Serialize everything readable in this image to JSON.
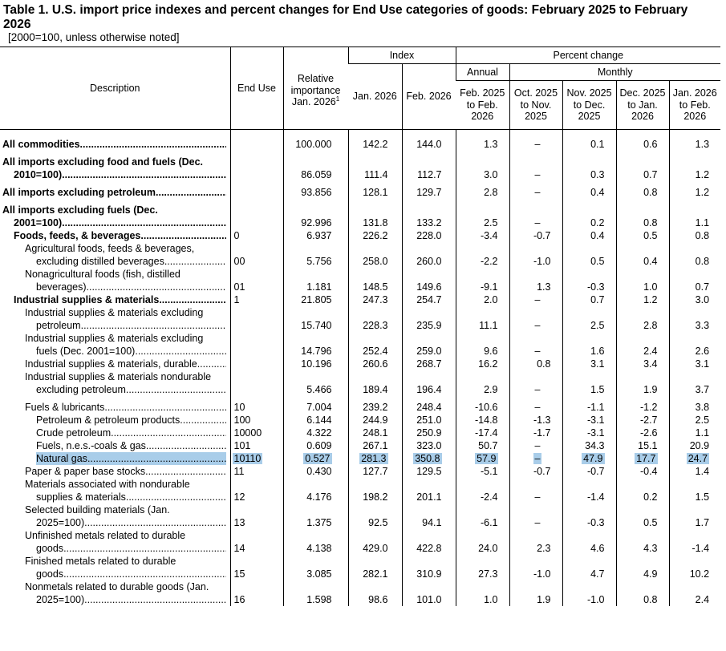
{
  "title": "Table 1. U.S. import price indexes and percent changes for End Use categories of goods: February 2025 to February 2026",
  "subtitle": "[2000=100, unless otherwise noted]",
  "header": {
    "description": "Description",
    "end_use": "End Use",
    "relative_importance_text": "Relative importance Jan. 2026",
    "relative_importance_footnote": "1",
    "index_group": "Index",
    "percent_change_group": "Percent change",
    "annual": "Annual",
    "monthly": "Monthly",
    "index_jan": "Jan. 2026",
    "index_feb": "Feb. 2026",
    "annual_period": "Feb. 2025 to Feb. 2026",
    "m_oct_nov": "Oct. 2025 to Nov. 2025",
    "m_nov_dec": "Nov. 2025 to Dec. 2025",
    "m_dec_jan": "Dec. 2025 to Jan. 2026",
    "m_jan_feb": "Jan. 2026 to Feb. 2026"
  },
  "rows": [
    {
      "l1": "All commodities",
      "l2": "",
      "end_use": "",
      "rel": "100.000",
      "jan": "142.2",
      "feb": "144.0",
      "annual": "1.3",
      "oct_nov": "–",
      "nov_dec": "0.1",
      "dec_jan": "0.6",
      "jan_feb": "1.3"
    },
    {
      "l1": "All imports excluding food and fuels (Dec.",
      "l2": "2010=100)",
      "end_use": "",
      "rel": "86.059",
      "jan": "111.4",
      "feb": "112.7",
      "annual": "3.0",
      "oct_nov": "–",
      "nov_dec": "0.3",
      "dec_jan": "0.7",
      "jan_feb": "1.2"
    },
    {
      "l1": "All imports excluding petroleum",
      "l2": "",
      "end_use": "",
      "rel": "93.856",
      "jan": "128.1",
      "feb": "129.7",
      "annual": "2.8",
      "oct_nov": "–",
      "nov_dec": "0.4",
      "dec_jan": "0.8",
      "jan_feb": "1.2"
    },
    {
      "l1": "All imports excluding fuels (Dec.",
      "l2": "2001=100)",
      "end_use": "",
      "rel": "92.996",
      "jan": "131.8",
      "feb": "133.2",
      "annual": "2.5",
      "oct_nov": "–",
      "nov_dec": "0.2",
      "dec_jan": "0.8",
      "jan_feb": "1.1"
    },
    {
      "l1": "Foods, feeds, & beverages",
      "l2": "",
      "end_use": "0",
      "rel": "6.937",
      "jan": "226.2",
      "feb": "228.0",
      "annual": "-3.4",
      "oct_nov": "-0.7",
      "nov_dec": "0.4",
      "dec_jan": "0.5",
      "jan_feb": "0.8"
    },
    {
      "l1": "Agricultural foods, feeds & beverages,",
      "l2": "excluding distilled beverages",
      "end_use": "00",
      "rel": "5.756",
      "jan": "258.0",
      "feb": "260.0",
      "annual": "-2.2",
      "oct_nov": "-1.0",
      "nov_dec": "0.5",
      "dec_jan": "0.4",
      "jan_feb": "0.8"
    },
    {
      "l1": "Nonagricultural foods (fish, distilled",
      "l2": "beverages)",
      "end_use": "01",
      "rel": "1.181",
      "jan": "148.5",
      "feb": "149.6",
      "annual": "-9.1",
      "oct_nov": "1.3",
      "nov_dec": "-0.3",
      "dec_jan": "1.0",
      "jan_feb": "0.7"
    },
    {
      "l1": "Industrial supplies & materials",
      "l2": "",
      "end_use": "1",
      "rel": "21.805",
      "jan": "247.3",
      "feb": "254.7",
      "annual": "2.0",
      "oct_nov": "–",
      "nov_dec": "0.7",
      "dec_jan": "1.2",
      "jan_feb": "3.0"
    },
    {
      "l1": "Industrial supplies & materials excluding",
      "l2": "petroleum",
      "end_use": "",
      "rel": "15.740",
      "jan": "228.3",
      "feb": "235.9",
      "annual": "11.1",
      "oct_nov": "–",
      "nov_dec": "2.5",
      "dec_jan": "2.8",
      "jan_feb": "3.3"
    },
    {
      "l1": "Industrial supplies & materials excluding",
      "l2": "fuels (Dec. 2001=100)",
      "end_use": "",
      "rel": "14.796",
      "jan": "252.4",
      "feb": "259.0",
      "annual": "9.6",
      "oct_nov": "–",
      "nov_dec": "1.6",
      "dec_jan": "2.4",
      "jan_feb": "2.6"
    },
    {
      "l1": "Industrial supplies & materials, durable",
      "l2": "",
      "end_use": "",
      "rel": "10.196",
      "jan": "260.6",
      "feb": "268.7",
      "annual": "16.2",
      "oct_nov": "0.8",
      "nov_dec": "3.1",
      "dec_jan": "3.4",
      "jan_feb": "3.1"
    },
    {
      "l1": "Industrial supplies & materials nondurable",
      "l2": "excluding petroleum",
      "end_use": "",
      "rel": "5.466",
      "jan": "189.4",
      "feb": "196.4",
      "annual": "2.9",
      "oct_nov": "–",
      "nov_dec": "1.5",
      "dec_jan": "1.9",
      "jan_feb": "3.7"
    },
    {
      "l1": "Fuels & lubricants",
      "l2": "",
      "end_use": "10",
      "rel": "7.004",
      "jan": "239.2",
      "feb": "248.4",
      "annual": "-10.6",
      "oct_nov": "–",
      "nov_dec": "-1.1",
      "dec_jan": "-1.2",
      "jan_feb": "3.8"
    },
    {
      "l1": "Petroleum & petroleum products",
      "l2": "",
      "end_use": "100",
      "rel": "6.144",
      "jan": "244.9",
      "feb": "251.0",
      "annual": "-14.8",
      "oct_nov": "-1.3",
      "nov_dec": "-3.1",
      "dec_jan": "-2.7",
      "jan_feb": "2.5"
    },
    {
      "l1": "Crude petroleum",
      "l2": "",
      "end_use": "10000",
      "rel": "4.322",
      "jan": "248.1",
      "feb": "250.9",
      "annual": "-17.4",
      "oct_nov": "-1.7",
      "nov_dec": "-3.1",
      "dec_jan": "-2.6",
      "jan_feb": "1.1"
    },
    {
      "l1": "Fuels, n.e.s.-coals & gas",
      "l2": "",
      "end_use": "101",
      "rel": "0.609",
      "jan": "267.1",
      "feb": "323.0",
      "annual": "50.7",
      "oct_nov": "–",
      "nov_dec": "34.3",
      "dec_jan": "15.1",
      "jan_feb": "20.9"
    },
    {
      "l1": "Natural gas",
      "l2": "",
      "end_use": "10110",
      "rel": "0.527",
      "jan": "281.3",
      "feb": "350.8",
      "annual": "57.9",
      "oct_nov": "–",
      "nov_dec": "47.9",
      "dec_jan": "17.7",
      "jan_feb": "24.7"
    },
    {
      "l1": "Paper & paper base stocks",
      "l2": "",
      "end_use": "11",
      "rel": "0.430",
      "jan": "127.7",
      "feb": "129.5",
      "annual": "-5.1",
      "oct_nov": "-0.7",
      "nov_dec": "-0.7",
      "dec_jan": "-0.4",
      "jan_feb": "1.4"
    },
    {
      "l1": "Materials associated with nondurable",
      "l2": "supplies & materials",
      "end_use": "12",
      "rel": "4.176",
      "jan": "198.2",
      "feb": "201.1",
      "annual": "-2.4",
      "oct_nov": "–",
      "nov_dec": "-1.4",
      "dec_jan": "0.2",
      "jan_feb": "1.5"
    },
    {
      "l1": "Selected building materials (Jan.",
      "l2": "2025=100)",
      "end_use": "13",
      "rel": "1.375",
      "jan": "92.5",
      "feb": "94.1",
      "annual": "-6.1",
      "oct_nov": "–",
      "nov_dec": "-0.3",
      "dec_jan": "0.5",
      "jan_feb": "1.7"
    },
    {
      "l1": "Unfinished metals related to durable",
      "l2": "goods",
      "end_use": "14",
      "rel": "4.138",
      "jan": "429.0",
      "feb": "422.8",
      "annual": "24.0",
      "oct_nov": "2.3",
      "nov_dec": "4.6",
      "dec_jan": "4.3",
      "jan_feb": "-1.4"
    },
    {
      "l1": "Finished metals related to durable",
      "l2": "goods",
      "end_use": "15",
      "rel": "3.085",
      "jan": "282.1",
      "feb": "310.9",
      "annual": "27.3",
      "oct_nov": "-1.0",
      "nov_dec": "4.7",
      "dec_jan": "4.9",
      "jan_feb": "10.2"
    },
    {
      "l1": "Nonmetals related to durable goods (Jan.",
      "l2": "2025=100)",
      "end_use": "16",
      "rel": "1.598",
      "jan": "98.6",
      "feb": "101.0",
      "annual": "1.0",
      "oct_nov": "1.9",
      "nov_dec": "-1.0",
      "dec_jan": "0.8",
      "jan_feb": "2.4"
    }
  ]
}
